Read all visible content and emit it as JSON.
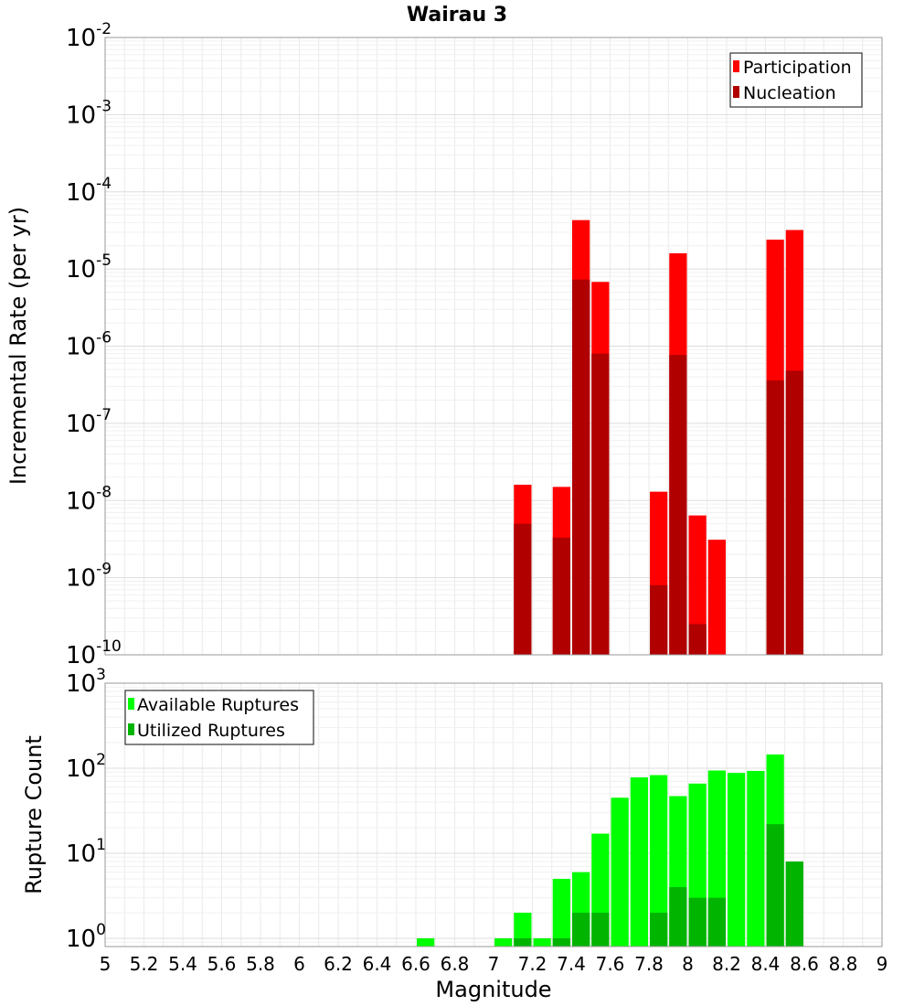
{
  "chart_data": {
    "title": "Wairau 3",
    "xlabel": "Magnitude",
    "xlim": [
      5,
      9
    ],
    "x_ticks": [
      "5",
      "5.2",
      "5.4",
      "5.6",
      "5.8",
      "6",
      "6.2",
      "6.4",
      "6.6",
      "6.8",
      "7",
      "7.2",
      "7.4",
      "7.6",
      "7.8",
      "8",
      "8.2",
      "8.4",
      "8.6",
      "8.8",
      "9"
    ],
    "bin_width": 0.1,
    "panels": [
      {
        "type": "bar",
        "ylabel": "Incremental Rate (per yr)",
        "yscale": "log",
        "ylim": [
          1e-10,
          0.01
        ],
        "y_ticks": [
          {
            "base": "10",
            "exp": "-2"
          },
          {
            "base": "10",
            "exp": "-3"
          },
          {
            "base": "10",
            "exp": "-4"
          },
          {
            "base": "10",
            "exp": "-5"
          },
          {
            "base": "10",
            "exp": "-6"
          },
          {
            "base": "10",
            "exp": "-7"
          },
          {
            "base": "10",
            "exp": "-8"
          },
          {
            "base": "10",
            "exp": "-9"
          },
          {
            "base": "10",
            "exp": "-10"
          }
        ],
        "legend_position": "top-right",
        "grid": true,
        "series": [
          {
            "name": "Participation",
            "color": "#ff0000",
            "x": [
              7.15,
              7.35,
              7.45,
              7.55,
              7.85,
              7.95,
              8.05,
              8.15,
              8.45,
              8.55
            ],
            "values": [
              1.6e-08,
              1.5e-08,
              4.3e-05,
              6.8e-06,
              1.3e-08,
              1.6e-05,
              6.4e-09,
              3.1e-09,
              2.4e-05,
              3.2e-05
            ]
          },
          {
            "name": "Nucleation",
            "color": "#b00000",
            "x": [
              7.15,
              7.35,
              7.45,
              7.55,
              7.85,
              7.95,
              8.05,
              8.45,
              8.55
            ],
            "values": [
              5e-09,
              3.3e-09,
              7.3e-06,
              8e-07,
              8e-10,
              7.7e-07,
              2.5e-10,
              3.6e-07,
              4.8e-07
            ]
          }
        ]
      },
      {
        "type": "bar",
        "ylabel": "Rupture Count",
        "yscale": "log",
        "ylim": [
          0.8,
          1000
        ],
        "y_ticks": [
          {
            "base": "10",
            "exp": "3"
          },
          {
            "base": "10",
            "exp": "2"
          },
          {
            "base": "10",
            "exp": "1"
          },
          {
            "base": "10",
            "exp": "0"
          }
        ],
        "legend_position": "top-left",
        "grid": true,
        "series": [
          {
            "name": "Available Ruptures",
            "color": "#00ff00",
            "x": [
              6.65,
              7.05,
              7.15,
              7.25,
              7.35,
              7.45,
              7.55,
              7.65,
              7.75,
              7.85,
              7.95,
              8.05,
              8.15,
              8.25,
              8.35,
              8.45,
              8.55
            ],
            "values": [
              1,
              1,
              2,
              1,
              5,
              6,
              17,
              45,
              78,
              83,
              47,
              66,
              94,
              88,
              93,
              145,
              8
            ]
          },
          {
            "name": "Utilized Ruptures",
            "color": "#00b400",
            "x": [
              7.15,
              7.35,
              7.45,
              7.55,
              7.85,
              7.95,
              8.05,
              8.15,
              8.45,
              8.55
            ],
            "values": [
              1,
              1,
              2,
              2,
              2,
              4,
              3,
              3,
              22,
              8
            ]
          }
        ]
      }
    ]
  }
}
